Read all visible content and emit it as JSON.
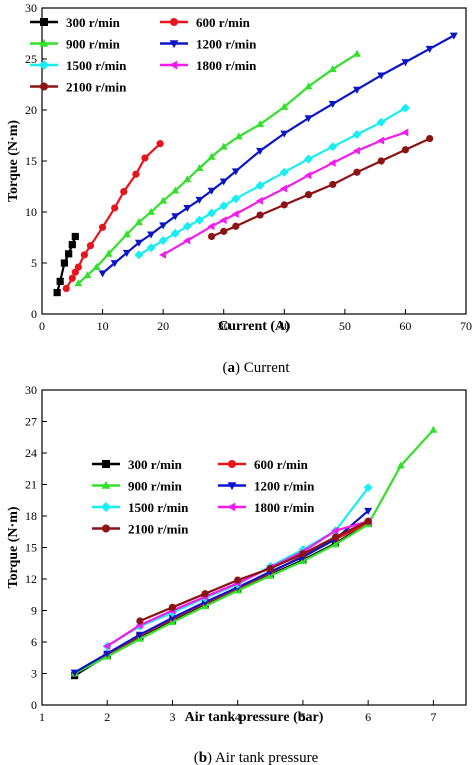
{
  "chart_data": [
    {
      "type": "line",
      "id": "a",
      "xlabel": "Current (A)",
      "ylabel": "Torque (N·m)",
      "xlim": [
        0,
        70
      ],
      "ylim": [
        0,
        30
      ],
      "xticks": [
        0,
        10,
        20,
        30,
        40,
        50,
        60,
        70
      ],
      "yticks": [
        0,
        5,
        10,
        15,
        20,
        25,
        30
      ],
      "grid": false,
      "legend_position": "top-left",
      "caption_prefix": "(a)",
      "caption_text": "Current",
      "series": [
        {
          "name": "300 r/min",
          "color": "#000000",
          "marker": "square",
          "x": [
            2.5,
            3.0,
            3.7,
            4.4,
            5.0,
            5.5
          ],
          "y": [
            2.1,
            3.2,
            5.0,
            5.9,
            6.8,
            7.6
          ]
        },
        {
          "name": "600 r/min",
          "color": "#e8141c",
          "marker": "circle",
          "x": [
            4.0,
            5.0,
            5.5,
            6.0,
            7.0,
            8.0,
            10.0,
            12.0,
            13.5,
            15.5,
            17.0,
            19.5
          ],
          "y": [
            2.5,
            3.5,
            4.1,
            4.6,
            5.8,
            6.7,
            8.5,
            10.4,
            12.0,
            13.7,
            15.3,
            16.7
          ]
        },
        {
          "name": "900 r/min",
          "color": "#33e02a",
          "marker": "triangle-up",
          "x": [
            6.0,
            7.5,
            9.0,
            11.0,
            14.0,
            16.0,
            18.0,
            20.0,
            22.0,
            24.0,
            26.0,
            28.0,
            30.0,
            32.5,
            36.0,
            40.0,
            44.0,
            48.0,
            52.0
          ],
          "y": [
            3.0,
            3.8,
            4.6,
            5.9,
            7.8,
            9.0,
            10.0,
            11.1,
            12.1,
            13.2,
            14.3,
            15.4,
            16.4,
            17.4,
            18.6,
            20.3,
            22.3,
            24.0,
            25.5
          ]
        },
        {
          "name": "1200 r/min",
          "color": "#0b14c8",
          "marker": "triangle-down",
          "x": [
            10.0,
            12.0,
            14.0,
            16.0,
            18.0,
            20.0,
            22.0,
            24.0,
            26.0,
            28.0,
            30.0,
            32.0,
            36.0,
            40.0,
            44.0,
            48.0,
            52.0,
            56.0,
            60.0,
            64.0,
            68.0
          ],
          "y": [
            4.0,
            5.0,
            6.0,
            7.0,
            7.8,
            8.7,
            9.6,
            10.4,
            11.2,
            12.1,
            13.0,
            14.0,
            16.0,
            17.7,
            19.2,
            20.6,
            22.0,
            23.4,
            24.7,
            26.0,
            27.3
          ]
        },
        {
          "name": "1500 r/min",
          "color": "#18eef2",
          "marker": "diamond",
          "x": [
            16.0,
            18.0,
            20.0,
            22.0,
            24.0,
            26.0,
            28.0,
            30.0,
            32.0,
            36.0,
            40.0,
            44.0,
            48.0,
            52.0,
            56.0,
            60.0
          ],
          "y": [
            5.8,
            6.5,
            7.2,
            7.9,
            8.6,
            9.2,
            9.9,
            10.6,
            11.3,
            12.6,
            13.9,
            15.2,
            16.4,
            17.6,
            18.8,
            20.2
          ]
        },
        {
          "name": "1800 r/min",
          "color": "#f21cee",
          "marker": "triangle-left",
          "x": [
            20.0,
            24.0,
            28.0,
            30.0,
            32.0,
            36.0,
            40.0,
            44.0,
            48.0,
            52.0,
            56.0,
            60.0
          ],
          "y": [
            5.8,
            7.2,
            8.6,
            9.2,
            9.8,
            11.1,
            12.3,
            13.6,
            14.8,
            16.0,
            17.0,
            17.8
          ]
        },
        {
          "name": "2100 r/min",
          "color": "#8b1313",
          "marker": "circle",
          "x": [
            28.0,
            30.0,
            32.0,
            36.0,
            40.0,
            44.0,
            48.0,
            52.0,
            56.0,
            60.0,
            64.0
          ],
          "y": [
            7.6,
            8.1,
            8.6,
            9.7,
            10.7,
            11.7,
            12.7,
            13.9,
            15.0,
            16.1,
            17.2
          ]
        }
      ]
    },
    {
      "type": "line",
      "id": "b",
      "xlabel": "Air tank pressure (bar)",
      "ylabel": "Torque (N·m)",
      "xlim": [
        1,
        7.5
      ],
      "ylim": [
        0,
        30
      ],
      "xticks": [
        1,
        2,
        3,
        4,
        5,
        6,
        7
      ],
      "yticks": [
        0,
        3,
        6,
        9,
        12,
        15,
        18,
        21,
        24,
        27,
        30
      ],
      "grid": false,
      "legend_position": "center-left",
      "caption_prefix": "(b)",
      "caption_text": "Air tank pressure",
      "series": [
        {
          "name": "300 r/min",
          "color": "#000000",
          "marker": "square",
          "x": [
            1.5,
            2.0,
            2.5,
            3.0,
            3.5,
            4.0,
            4.5,
            5.0,
            5.5,
            6.0
          ],
          "y": [
            2.8,
            4.7,
            6.5,
            8.0,
            9.5,
            11.0,
            12.4,
            13.8,
            15.4,
            17.3
          ]
        },
        {
          "name": "600 r/min",
          "color": "#e8141c",
          "marker": "circle",
          "x": [
            1.5,
            2.0,
            2.5,
            3.0,
            3.5,
            4.0,
            4.5,
            5.0,
            5.5,
            6.0
          ],
          "y": [
            3.0,
            4.8,
            6.6,
            8.2,
            9.7,
            11.1,
            12.6,
            14.2,
            15.8,
            17.3
          ]
        },
        {
          "name": "900 r/min",
          "color": "#33e02a",
          "marker": "triangle-up",
          "x": [
            1.5,
            2.0,
            2.5,
            3.0,
            3.5,
            4.0,
            4.5,
            5.0,
            5.5,
            6.0,
            6.5,
            7.0
          ],
          "y": [
            3.0,
            4.6,
            6.3,
            7.9,
            9.4,
            10.9,
            12.3,
            13.7,
            15.3,
            17.2,
            22.8,
            26.2
          ]
        },
        {
          "name": "1200 r/min",
          "color": "#0b14c8",
          "marker": "triangle-down",
          "x": [
            1.5,
            2.0,
            2.5,
            3.0,
            3.5,
            4.0,
            4.5,
            5.0,
            5.5,
            6.0
          ],
          "y": [
            3.1,
            4.9,
            6.7,
            8.3,
            9.8,
            11.2,
            12.7,
            14.1,
            15.8,
            18.5
          ]
        },
        {
          "name": "1500 r/min",
          "color": "#18eef2",
          "marker": "diamond",
          "x": [
            2.0,
            2.5,
            3.0,
            3.5,
            4.0,
            4.5,
            5.0,
            5.5,
            6.0
          ],
          "y": [
            5.6,
            7.5,
            8.8,
            10.2,
            11.5,
            13.2,
            14.8,
            16.6,
            20.7
          ]
        },
        {
          "name": "1800 r/min",
          "color": "#f21cee",
          "marker": "triangle-left",
          "x": [
            2.0,
            2.5,
            3.0,
            3.5,
            4.0,
            4.5,
            5.0,
            5.5,
            6.0
          ],
          "y": [
            5.6,
            7.6,
            9.0,
            10.3,
            11.6,
            13.1,
            14.6,
            16.6,
            17.5
          ]
        },
        {
          "name": "2100 r/min",
          "color": "#8b1313",
          "marker": "circle",
          "x": [
            2.5,
            3.0,
            3.5,
            4.0,
            4.5,
            5.0,
            5.5,
            6.0
          ],
          "y": [
            8.0,
            9.3,
            10.6,
            11.9,
            13.0,
            14.4,
            16.0,
            17.5
          ]
        }
      ]
    }
  ]
}
